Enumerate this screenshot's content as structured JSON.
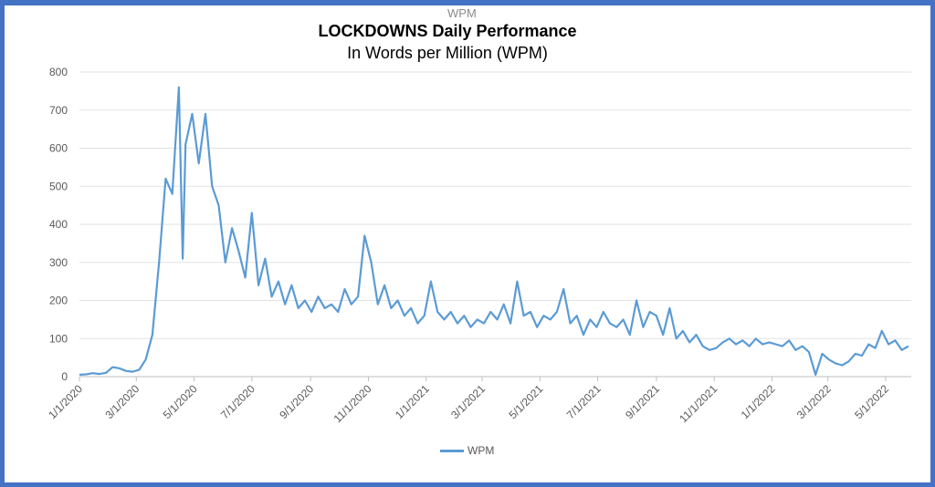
{
  "chart_data": {
    "type": "line",
    "title": "LOCKDOWNS Daily Performance",
    "subtitle": "In Words per Million  (WPM)",
    "overlapping_series_title": "WPM",
    "xlabel": "",
    "ylabel": "",
    "ylim": [
      0,
      800
    ],
    "yticks": [
      0,
      100,
      200,
      300,
      400,
      500,
      600,
      700,
      800
    ],
    "xlim": [
      "2020-01-01",
      "2022-05-28"
    ],
    "xticks": [
      {
        "date": "2020-01-01",
        "label": "1/1/2020"
      },
      {
        "date": "2020-03-01",
        "label": "3/1/2020"
      },
      {
        "date": "2020-05-01",
        "label": "5/1/2020"
      },
      {
        "date": "2020-07-01",
        "label": "7/1/2020"
      },
      {
        "date": "2020-09-01",
        "label": "9/1/2020"
      },
      {
        "date": "2020-11-01",
        "label": "11/1/2020"
      },
      {
        "date": "2021-01-01",
        "label": "1/1/2021"
      },
      {
        "date": "2021-03-01",
        "label": "3/1/2021"
      },
      {
        "date": "2021-05-01",
        "label": "5/1/2021"
      },
      {
        "date": "2021-07-01",
        "label": "7/1/2021"
      },
      {
        "date": "2021-09-01",
        "label": "9/1/2021"
      },
      {
        "date": "2021-11-01",
        "label": "11/1/2021"
      },
      {
        "date": "2022-01-01",
        "label": "1/1/2022"
      },
      {
        "date": "2022-03-01",
        "label": "3/1/2022"
      },
      {
        "date": "2022-05-01",
        "label": "5/1/2022"
      }
    ],
    "grid": true,
    "legend": "bottom",
    "series": [
      {
        "name": "WPM",
        "color": "#5B9BD5",
        "points": [
          [
            "2020-01-01",
            5
          ],
          [
            "2020-01-08",
            6
          ],
          [
            "2020-01-15",
            9
          ],
          [
            "2020-01-22",
            7
          ],
          [
            "2020-01-29",
            10
          ],
          [
            "2020-02-05",
            25
          ],
          [
            "2020-02-12",
            22
          ],
          [
            "2020-02-19",
            15
          ],
          [
            "2020-02-26",
            13
          ],
          [
            "2020-03-04",
            18
          ],
          [
            "2020-03-11",
            45
          ],
          [
            "2020-03-18",
            110
          ],
          [
            "2020-03-25",
            300
          ],
          [
            "2020-04-01",
            520
          ],
          [
            "2020-04-08",
            480
          ],
          [
            "2020-04-15",
            760
          ],
          [
            "2020-04-19",
            310
          ],
          [
            "2020-04-22",
            610
          ],
          [
            "2020-04-29",
            690
          ],
          [
            "2020-05-06",
            560
          ],
          [
            "2020-05-13",
            690
          ],
          [
            "2020-05-20",
            500
          ],
          [
            "2020-05-27",
            450
          ],
          [
            "2020-06-03",
            300
          ],
          [
            "2020-06-10",
            390
          ],
          [
            "2020-06-17",
            330
          ],
          [
            "2020-06-24",
            260
          ],
          [
            "2020-07-01",
            430
          ],
          [
            "2020-07-08",
            240
          ],
          [
            "2020-07-15",
            310
          ],
          [
            "2020-07-22",
            210
          ],
          [
            "2020-07-29",
            250
          ],
          [
            "2020-08-05",
            190
          ],
          [
            "2020-08-12",
            240
          ],
          [
            "2020-08-19",
            180
          ],
          [
            "2020-08-26",
            200
          ],
          [
            "2020-09-02",
            170
          ],
          [
            "2020-09-09",
            210
          ],
          [
            "2020-09-16",
            180
          ],
          [
            "2020-09-23",
            190
          ],
          [
            "2020-09-30",
            170
          ],
          [
            "2020-10-07",
            230
          ],
          [
            "2020-10-14",
            190
          ],
          [
            "2020-10-21",
            210
          ],
          [
            "2020-10-28",
            370
          ],
          [
            "2020-11-04",
            300
          ],
          [
            "2020-11-11",
            190
          ],
          [
            "2020-11-18",
            240
          ],
          [
            "2020-11-25",
            180
          ],
          [
            "2020-12-02",
            200
          ],
          [
            "2020-12-09",
            160
          ],
          [
            "2020-12-16",
            180
          ],
          [
            "2020-12-23",
            140
          ],
          [
            "2020-12-30",
            160
          ],
          [
            "2021-01-06",
            250
          ],
          [
            "2021-01-13",
            170
          ],
          [
            "2021-01-20",
            150
          ],
          [
            "2021-01-27",
            170
          ],
          [
            "2021-02-03",
            140
          ],
          [
            "2021-02-10",
            160
          ],
          [
            "2021-02-17",
            130
          ],
          [
            "2021-02-24",
            150
          ],
          [
            "2021-03-03",
            140
          ],
          [
            "2021-03-10",
            170
          ],
          [
            "2021-03-17",
            150
          ],
          [
            "2021-03-24",
            190
          ],
          [
            "2021-03-31",
            140
          ],
          [
            "2021-04-07",
            250
          ],
          [
            "2021-04-14",
            160
          ],
          [
            "2021-04-21",
            170
          ],
          [
            "2021-04-28",
            130
          ],
          [
            "2021-05-05",
            160
          ],
          [
            "2021-05-12",
            150
          ],
          [
            "2021-05-19",
            170
          ],
          [
            "2021-05-26",
            230
          ],
          [
            "2021-06-02",
            140
          ],
          [
            "2021-06-09",
            160
          ],
          [
            "2021-06-16",
            110
          ],
          [
            "2021-06-23",
            150
          ],
          [
            "2021-06-30",
            130
          ],
          [
            "2021-07-07",
            170
          ],
          [
            "2021-07-14",
            140
          ],
          [
            "2021-07-21",
            130
          ],
          [
            "2021-07-28",
            150
          ],
          [
            "2021-08-04",
            110
          ],
          [
            "2021-08-11",
            200
          ],
          [
            "2021-08-18",
            130
          ],
          [
            "2021-08-25",
            170
          ],
          [
            "2021-09-01",
            160
          ],
          [
            "2021-09-08",
            110
          ],
          [
            "2021-09-15",
            180
          ],
          [
            "2021-09-22",
            100
          ],
          [
            "2021-09-29",
            120
          ],
          [
            "2021-10-06",
            90
          ],
          [
            "2021-10-13",
            110
          ],
          [
            "2021-10-20",
            80
          ],
          [
            "2021-10-27",
            70
          ],
          [
            "2021-11-03",
            75
          ],
          [
            "2021-11-10",
            90
          ],
          [
            "2021-11-17",
            100
          ],
          [
            "2021-11-24",
            85
          ],
          [
            "2021-12-01",
            95
          ],
          [
            "2021-12-08",
            80
          ],
          [
            "2021-12-15",
            100
          ],
          [
            "2021-12-22",
            85
          ],
          [
            "2021-12-29",
            90
          ],
          [
            "2022-01-05",
            85
          ],
          [
            "2022-01-12",
            80
          ],
          [
            "2022-01-19",
            95
          ],
          [
            "2022-01-26",
            70
          ],
          [
            "2022-02-02",
            80
          ],
          [
            "2022-02-09",
            65
          ],
          [
            "2022-02-16",
            5
          ],
          [
            "2022-02-23",
            60
          ],
          [
            "2022-03-02",
            45
          ],
          [
            "2022-03-09",
            35
          ],
          [
            "2022-03-16",
            30
          ],
          [
            "2022-03-23",
            40
          ],
          [
            "2022-03-30",
            60
          ],
          [
            "2022-04-06",
            55
          ],
          [
            "2022-04-13",
            85
          ],
          [
            "2022-04-20",
            75
          ],
          [
            "2022-04-27",
            120
          ],
          [
            "2022-05-04",
            85
          ],
          [
            "2022-05-11",
            95
          ],
          [
            "2022-05-18",
            70
          ],
          [
            "2022-05-25",
            80
          ]
        ]
      }
    ]
  }
}
